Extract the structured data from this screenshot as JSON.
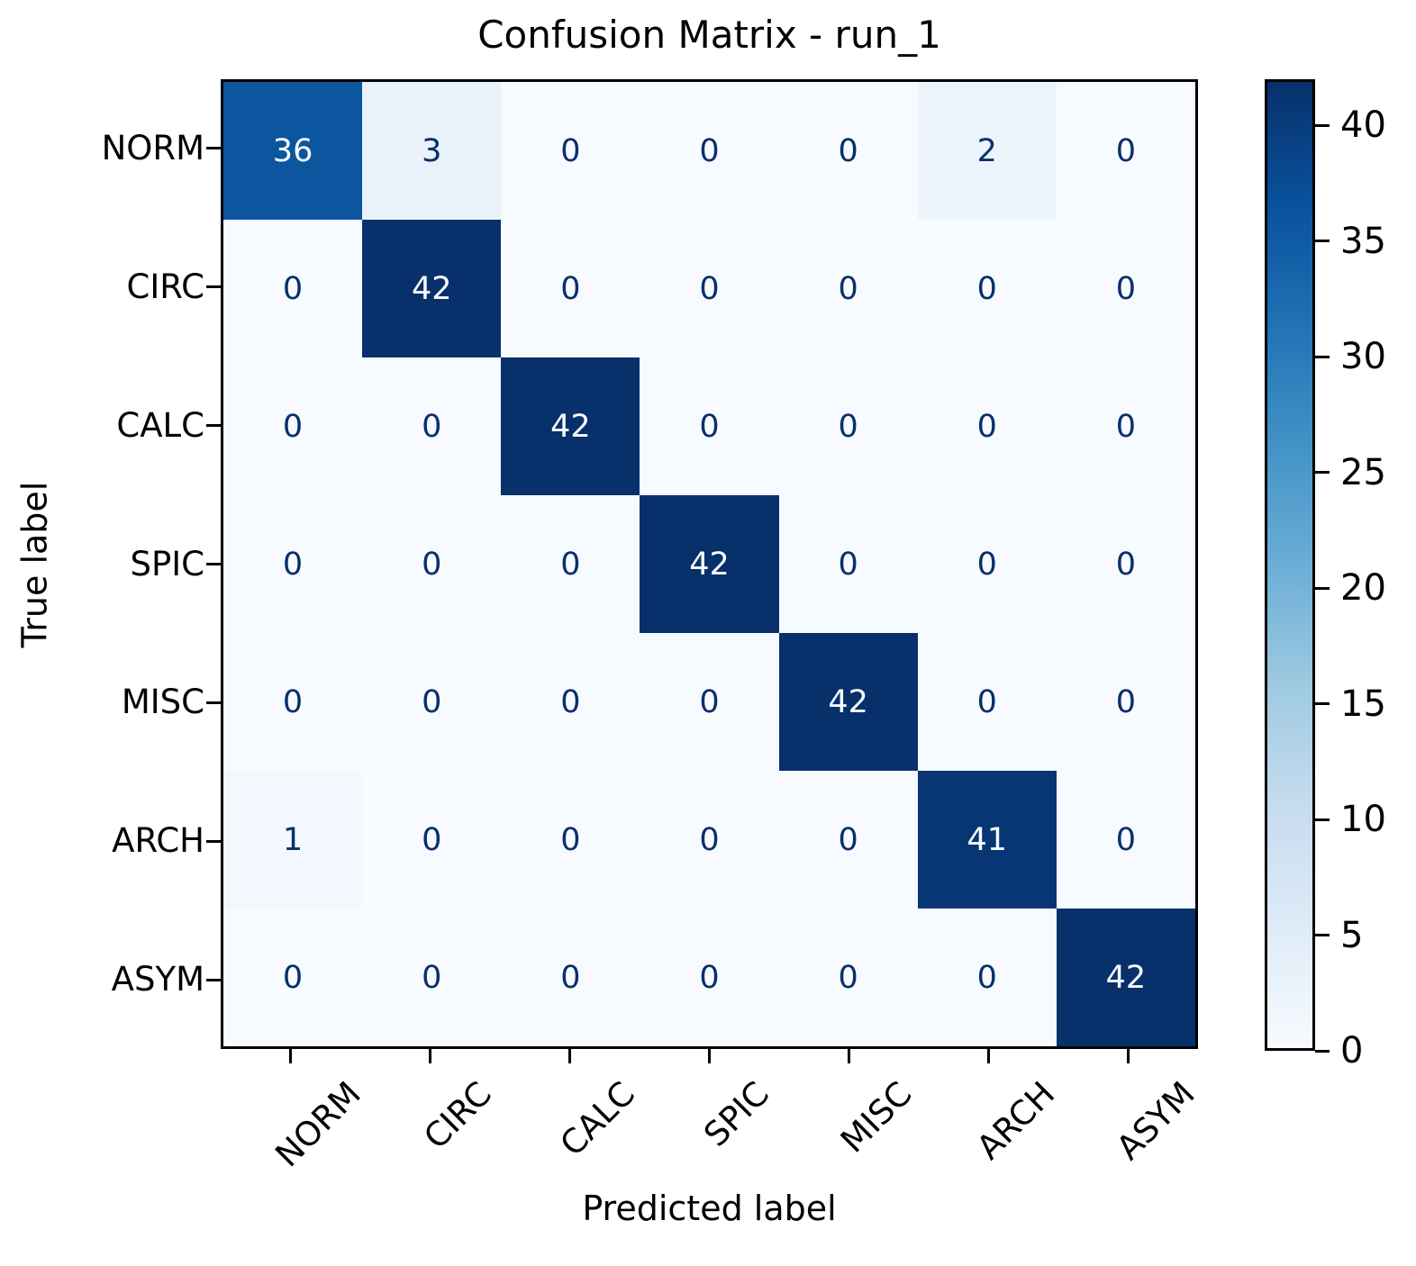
{
  "chart_data": {
    "type": "heatmap",
    "title": "Confusion Matrix - run_1",
    "xlabel": "Predicted label",
    "ylabel": "True label",
    "categories": [
      "NORM",
      "CIRC",
      "CALC",
      "SPIC",
      "MISC",
      "ARCH",
      "ASYM"
    ],
    "matrix": [
      [
        36,
        3,
        0,
        0,
        0,
        2,
        0
      ],
      [
        0,
        42,
        0,
        0,
        0,
        0,
        0
      ],
      [
        0,
        0,
        42,
        0,
        0,
        0,
        0
      ],
      [
        0,
        0,
        0,
        42,
        0,
        0,
        0
      ],
      [
        0,
        0,
        0,
        0,
        42,
        0,
        0
      ],
      [
        1,
        0,
        0,
        0,
        0,
        41,
        0
      ],
      [
        0,
        0,
        0,
        0,
        0,
        0,
        42
      ]
    ],
    "vmin": 0,
    "vmax": 42,
    "colorbar_ticks": [
      0,
      5,
      10,
      15,
      20,
      25,
      30,
      35,
      40
    ],
    "colormap": {
      "name": "Blues",
      "stops": [
        "#f7fbff",
        "#deebf7",
        "#c6dbef",
        "#9ecae1",
        "#6baed6",
        "#4292c6",
        "#2171b5",
        "#08519c",
        "#08306b"
      ]
    },
    "cell_text_color_dark": "#08306b",
    "cell_text_color_light": "#f7fbff",
    "axis_color": "#000000",
    "grid": false,
    "legend_position": "right-colorbar"
  }
}
